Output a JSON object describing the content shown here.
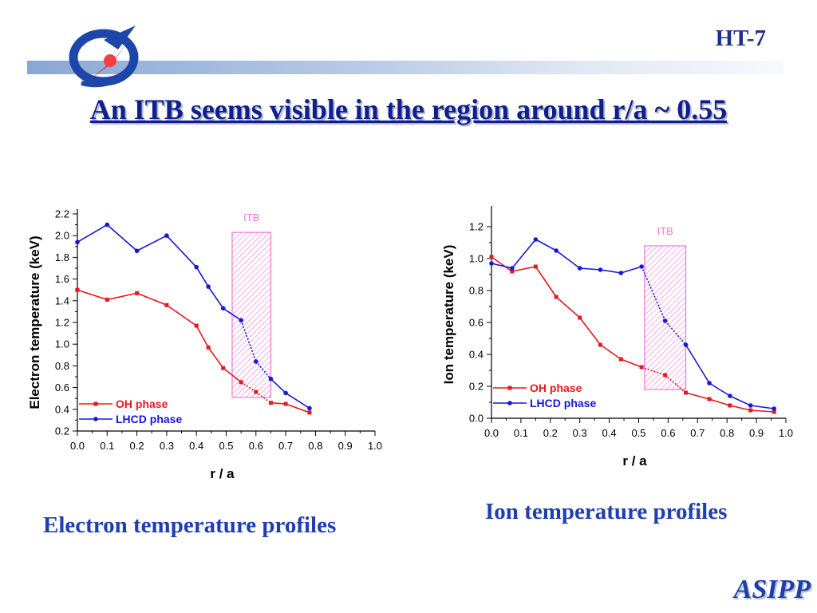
{
  "header": {
    "brand": "HT-7",
    "title": "An ITB seems visible in the region around r/a ~ 0.55",
    "footer": "ASIPP"
  },
  "colors": {
    "oh": "#e8181c",
    "lhcd": "#1717d8",
    "itb": "#ee77dd",
    "title": "#0f1f8f"
  },
  "captions": {
    "electron": "Electron temperature profiles",
    "ion": "Ion temperature profiles"
  },
  "chart_data": [
    {
      "type": "line",
      "xlabel": "r / a",
      "ylabel": "Electron temperature (keV)",
      "xlim": [
        0,
        1
      ],
      "ylim": [
        0.2,
        2.2
      ],
      "xticks": [
        0.0,
        0.1,
        0.2,
        0.3,
        0.4,
        0.5,
        0.6,
        0.7,
        0.8,
        0.9,
        1.0
      ],
      "yticks": [
        0.2,
        0.4,
        0.6,
        0.8,
        1.0,
        1.2,
        1.4,
        1.6,
        1.8,
        2.0,
        2.2
      ],
      "itb": {
        "label": "ITB",
        "x": [
          0.52,
          0.65
        ],
        "y": [
          0.51,
          2.03
        ]
      },
      "legend_position": "bottom-left",
      "series": [
        {
          "name": "OH phase",
          "x": [
            0.0,
            0.1,
            0.2,
            0.3,
            0.4,
            0.44,
            0.49,
            0.55,
            0.6,
            0.65,
            0.7,
            0.78
          ],
          "y": [
            1.5,
            1.41,
            1.47,
            1.36,
            1.17,
            0.97,
            0.78,
            0.65,
            0.56,
            0.46,
            0.45,
            0.37
          ]
        },
        {
          "name": "LHCD phase",
          "x": [
            0.0,
            0.1,
            0.2,
            0.3,
            0.4,
            0.44,
            0.49,
            0.55,
            0.6,
            0.65,
            0.7,
            0.78
          ],
          "y": [
            1.94,
            2.1,
            1.86,
            2.0,
            1.71,
            1.53,
            1.33,
            1.22,
            0.84,
            0.68,
            0.55,
            0.41
          ]
        }
      ]
    },
    {
      "type": "line",
      "xlabel": "r / a",
      "ylabel": "Ion temperature (keV)",
      "xlim": [
        0,
        1
      ],
      "ylim": [
        0,
        1.3
      ],
      "xticks": [
        0.0,
        0.1,
        0.2,
        0.3,
        0.4,
        0.5,
        0.6,
        0.7,
        0.8,
        0.9,
        1.0
      ],
      "yticks": [
        0.0,
        0.2,
        0.4,
        0.6,
        0.8,
        1.0,
        1.2
      ],
      "itb": {
        "label": "ITB",
        "x": [
          0.52,
          0.66
        ],
        "y": [
          0.18,
          1.08
        ]
      },
      "legend_position": "bottom-left",
      "series": [
        {
          "name": "OH phase",
          "x": [
            0.0,
            0.07,
            0.15,
            0.22,
            0.3,
            0.37,
            0.44,
            0.51,
            0.59,
            0.66,
            0.74,
            0.81,
            0.88,
            0.96
          ],
          "y": [
            1.01,
            0.92,
            0.95,
            0.76,
            0.63,
            0.46,
            0.37,
            0.32,
            0.27,
            0.16,
            0.12,
            0.08,
            0.05,
            0.04
          ]
        },
        {
          "name": "LHCD phase",
          "x": [
            0.0,
            0.07,
            0.15,
            0.22,
            0.3,
            0.37,
            0.44,
            0.51,
            0.59,
            0.66,
            0.74,
            0.81,
            0.88,
            0.96
          ],
          "y": [
            0.97,
            0.94,
            1.12,
            1.05,
            0.94,
            0.93,
            0.91,
            0.95,
            0.61,
            0.46,
            0.22,
            0.14,
            0.08,
            0.06
          ]
        }
      ]
    }
  ]
}
